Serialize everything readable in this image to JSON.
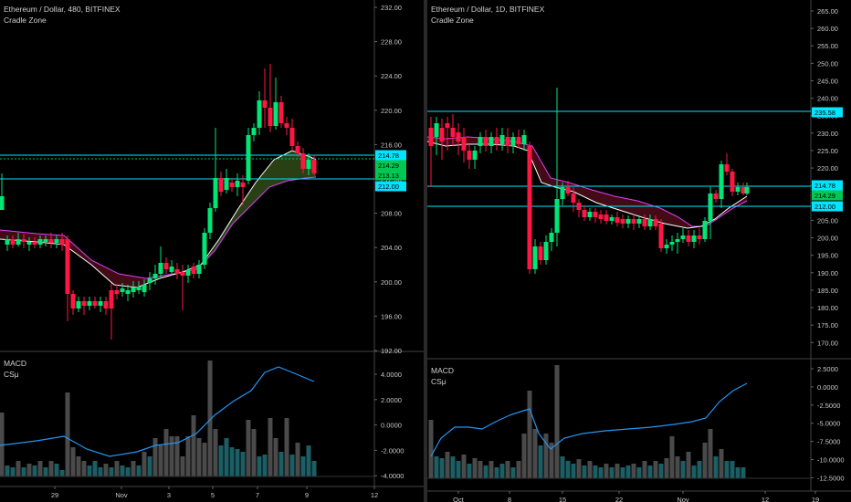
{
  "left": {
    "title": "Ethereum / Dollar, 480, BITFINEX",
    "subtitle": "Cradle Zone",
    "price_ticks": [
      "232.00",
      "228.00",
      "224.00",
      "220.00",
      "216.00",
      "212.00",
      "208.00",
      "204.00",
      "200.00",
      "196.00",
      "192.00"
    ],
    "price_labels": [
      {
        "text": "214.78",
        "color": "#00e5ff",
        "fg": "#000"
      },
      {
        "text": "214.29",
        "color": "#00c853",
        "fg": "#000"
      },
      {
        "text": "213.13",
        "color": "#00c853",
        "fg": "#000"
      },
      {
        "text": "212.00",
        "color": "#00e5ff",
        "fg": "#000"
      }
    ],
    "indicator_title": "MACD",
    "indicator_sub": "CSμ",
    "macd_ticks": [
      "4.0000",
      "2.0000",
      "0.0000",
      "-2.0000",
      "-4.0000"
    ],
    "time_ticks": [
      "29",
      "Nov",
      "3",
      "5",
      "7",
      "9",
      "12"
    ]
  },
  "right": {
    "title": "Ethereum / Dollar, 1D, BITFINEX",
    "subtitle": "Cradle Zone",
    "price_ticks": [
      "265.00",
      "260.00",
      "255.00",
      "250.00",
      "245.00",
      "240.00",
      "235.00",
      "230.00",
      "225.00",
      "220.00",
      "215.00",
      "210.00",
      "205.00",
      "200.00",
      "195.00",
      "190.00",
      "185.00",
      "180.00",
      "175.00",
      "170.00"
    ],
    "price_labels": [
      {
        "text": "235.58",
        "color": "#00e5ff",
        "fg": "#000"
      },
      {
        "text": "214.78",
        "color": "#00e5ff",
        "fg": "#000"
      },
      {
        "text": "214.29",
        "color": "#00c853",
        "fg": "#000"
      },
      {
        "text": "212.00",
        "color": "#00e5ff",
        "fg": "#000"
      }
    ],
    "indicator_title": "MACD",
    "indicator_sub": "CSμ",
    "macd_ticks": [
      "2.5000",
      "0.0000",
      "-2.5000",
      "-5.0000",
      "-7.5000",
      "-10.0000",
      "-12.5000"
    ],
    "time_ticks": [
      "Oct",
      "8",
      "15",
      "22",
      "Nov",
      "12",
      "19"
    ]
  },
  "colors": {
    "up": "#00e676",
    "down": "#ff1744",
    "ema_fast": "#ffffff",
    "ema_slow": "#e040fb",
    "macd_line": "#2196f3",
    "hline": "#00e5ff",
    "dotted": "#00c853"
  }
}
